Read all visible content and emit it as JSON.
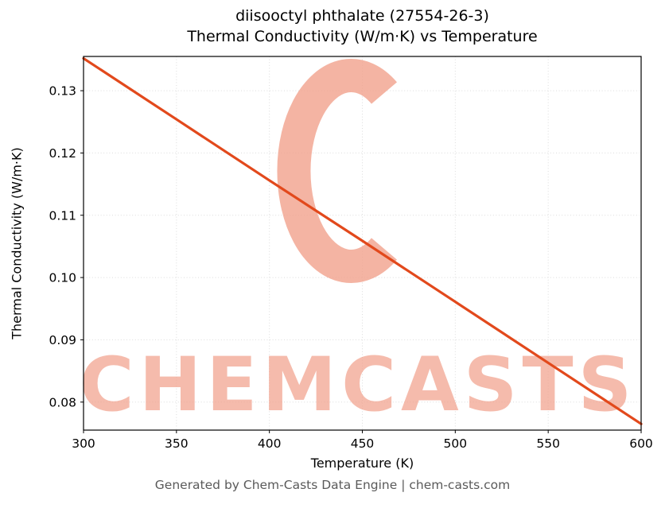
{
  "header": {
    "title_line1": "diisooctyl phthalate (27554-26-3)",
    "title_line2": "Thermal Conductivity (W/m·K) vs Temperature"
  },
  "footer": {
    "text": "Generated by Chem-Casts Data Engine | chem-casts.com"
  },
  "watermark": {
    "text": "CHEMCASTS",
    "color": "#f1a18c"
  },
  "chart_data": {
    "type": "line",
    "title": "diisooctyl phthalate (27554-26-3) — Thermal Conductivity (W/m·K) vs Temperature",
    "xlabel": "Temperature (K)",
    "ylabel": "Thermal Conductivity (W/m·K)",
    "x": [
      300,
      350,
      400,
      450,
      500,
      550,
      600
    ],
    "series": [
      {
        "name": "thermal-conductivity",
        "color": "#e2491c",
        "values": [
          0.1352,
          0.1254,
          0.1156,
          0.1059,
          0.0961,
          0.0863,
          0.0765
        ]
      }
    ],
    "xlim": [
      300,
      600
    ],
    "ylim": [
      0.0755,
      0.1355
    ],
    "xticks": [
      300,
      350,
      400,
      450,
      500,
      550,
      600
    ],
    "xtick_labels": [
      "300",
      "350",
      "400",
      "450",
      "500",
      "550",
      "600"
    ],
    "yticks": [
      0.08,
      0.09,
      0.1,
      0.11,
      0.12,
      0.13
    ],
    "ytick_labels": [
      "0.08",
      "0.09",
      "0.10",
      "0.11",
      "0.12",
      "0.13"
    ],
    "grid": true,
    "legend": "none"
  }
}
